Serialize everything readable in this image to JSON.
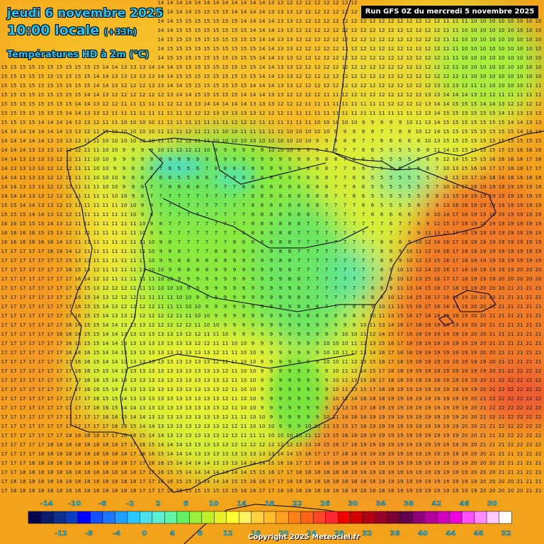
{
  "header": {
    "date": "jeudi 6 novembre 2025",
    "time_label": "10:00 locale",
    "time_offset": "(+33h)",
    "parameter": "Températures HD à 2m (°C)"
  },
  "run_info": "Run GFS 0Z du mercredi 5 novembre 2025",
  "copyright": "Copyright 2025 Meteociel.fr",
  "legend": {
    "upper_labels": [
      "-14",
      "-10",
      "-6",
      "-2",
      "2",
      "6",
      "10",
      "14",
      "18",
      "22",
      "26",
      "30",
      "34",
      "38",
      "42",
      "46",
      "50"
    ],
    "lower_labels": [
      "-12",
      "-8",
      "-4",
      "0",
      "4",
      "8",
      "12",
      "16",
      "20",
      "24",
      "28",
      "32",
      "36",
      "40",
      "44",
      "48",
      "52"
    ],
    "colors": [
      "#06064e",
      "#0b1b6e",
      "#0d2f8f",
      "#0a3ec2",
      "#0000ff",
      "#1650ff",
      "#1e78ff",
      "#1ea0ff",
      "#28c8ff",
      "#4be0f0",
      "#5af0d2",
      "#5ff5a5",
      "#64f064",
      "#96f03c",
      "#bef028",
      "#e6f028",
      "#ffff32",
      "#fff064",
      "#ffd23c",
      "#ffbe28",
      "#ffa01e",
      "#ff8219",
      "#ff6414",
      "#ff4628",
      "#ff2832",
      "#f00000",
      "#d20000",
      "#b40014",
      "#960028",
      "#780032",
      "#640050",
      "#8c0078",
      "#b4009b",
      "#d200be",
      "#f000e1",
      "#ff50ff",
      "#ff8cff",
      "#ffc8ff",
      "#ffffff"
    ]
  },
  "colors": {
    "sea_warm": "#f3a21c",
    "sea_cool": "#f5c22e",
    "land_green": "#7ae63c",
    "land_cold": "#5ae6a0",
    "land_yellow": "#dcf032",
    "hot": "#f07a28",
    "title_text": "#1ec8ff",
    "border_line": "#000000"
  },
  "map_data": {
    "region": "Péninsule Ibérique",
    "value_grid_note": "numbers are 2 m temperatures in °C printed on a regular grid",
    "sample_values": {
      "atlantic_northwest": 15,
      "cantabrian_coast": 12,
      "northern_meseta": 7,
      "pyrenees": 5,
      "central_spain": 9,
      "andalusia": 13,
      "portugal_coast": 17,
      "balearic_sea": 19,
      "sardinia_sea": 21,
      "southwest_atlantic": 18,
      "gulf_of_lion": 12,
      "southern_france": 10
    }
  }
}
